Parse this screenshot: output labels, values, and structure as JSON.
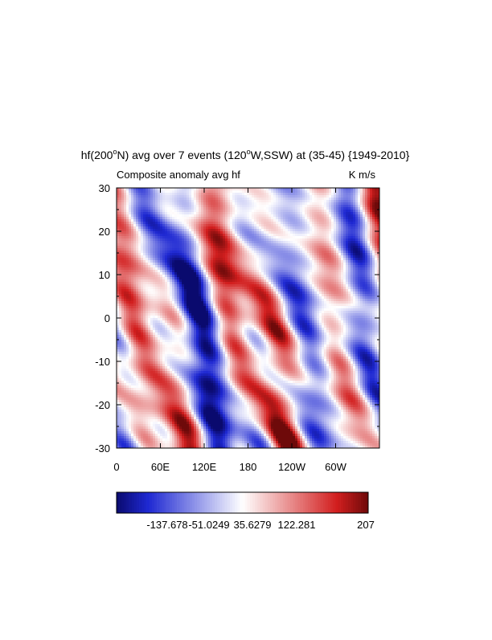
{
  "chart_data": {
    "type": "heatmap",
    "title": {
      "pre": "hf(200",
      "sup1": "o",
      "mid": "N) avg over 7 events (120",
      "sup2": "o",
      "post": "W,SSW) at (35-45) {1949-2010}"
    },
    "subtitle_left": "Composite anomaly avg hf",
    "units": "K m/s",
    "x_tick_labels": [
      "0",
      "60E",
      "120E",
      "180",
      "120W",
      "60W"
    ],
    "y_tick_labels": [
      "30",
      "20",
      "10",
      "0",
      "-10",
      "-20",
      "-30"
    ],
    "ylim": [
      -30,
      30
    ],
    "colorbar": {
      "labels": [
        "-137.678",
        "-51.0249",
        "35.6279",
        "122.281",
        "207"
      ],
      "min_color": "#0a0a6e",
      "neg_color": "#1e28d2",
      "zero_color": "#ffffff",
      "pos_color": "#d21e1e",
      "max_color": "#6e0a0a"
    },
    "grid": false
  }
}
